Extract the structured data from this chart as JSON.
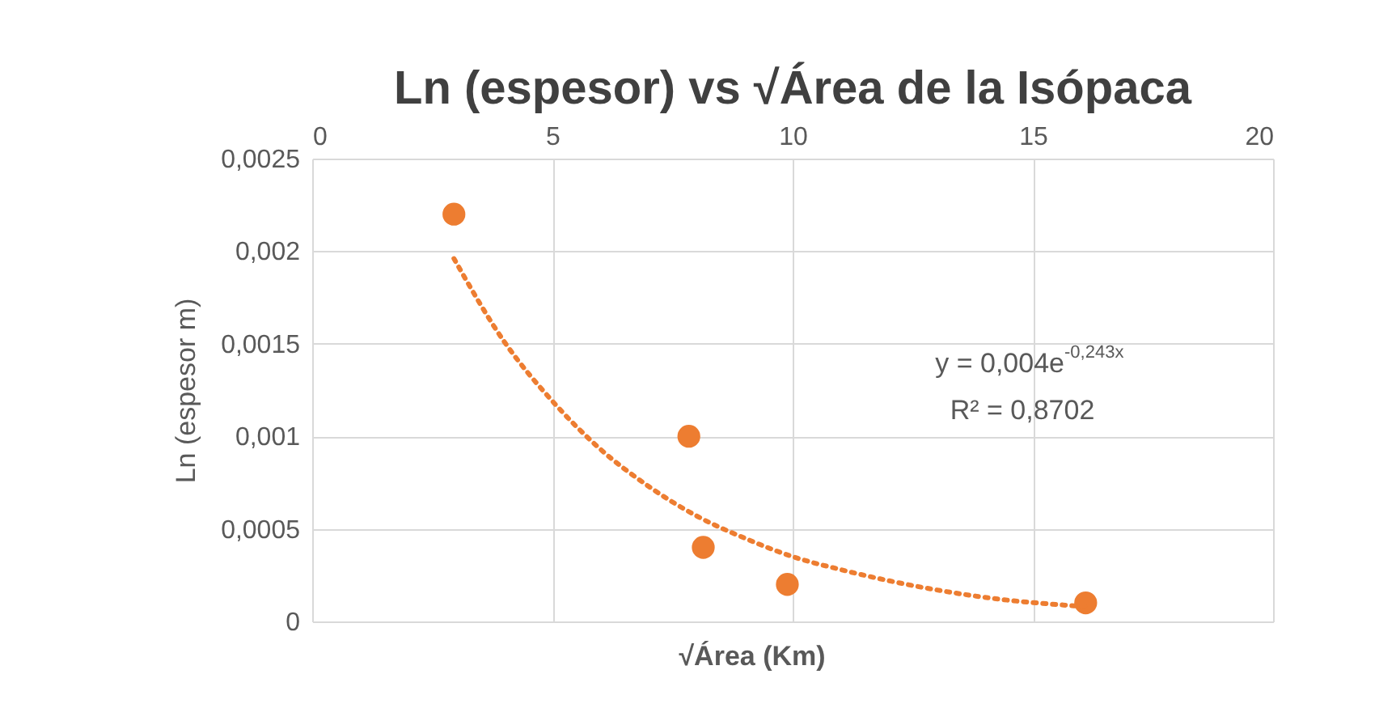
{
  "chart_data": {
    "type": "scatter",
    "title": "Ln (espesor) vs √Área de la Isópaca",
    "xlabel": "√Área (Km)",
    "ylabel": "Ln (espesor m)",
    "xlim": [
      0,
      20
    ],
    "xticks": [
      0,
      5,
      10,
      15,
      20
    ],
    "ylim": [
      0,
      0.0025
    ],
    "yticks": [
      {
        "value": 0,
        "label": "0"
      },
      {
        "value": 0.0005,
        "label": "0,0005"
      },
      {
        "value": 0.001,
        "label": "0,001"
      },
      {
        "value": 0.0015,
        "label": "0,0015"
      },
      {
        "value": 0.002,
        "label": "0,002"
      },
      {
        "value": 0.0025,
        "label": "0,0025"
      }
    ],
    "grid": true,
    "marker": "circle",
    "series": [
      {
        "color": "#ed7d31",
        "x": [
          2.95,
          7.84,
          8.14,
          9.89,
          16.1
        ],
        "values": [
          0.0022,
          0.001,
          0.0004,
          0.0002,
          0.0001
        ]
      },
      {
        "type": "line",
        "color": "#ed7d31",
        "line_style": "dotted",
        "marker": "none",
        "x": [
          2.95,
          4,
          5,
          6,
          7,
          8,
          9,
          10,
          11,
          12,
          13,
          14,
          16.1
        ],
        "values": [
          0.00196,
          0.00151,
          0.00119,
          0.00093,
          0.00073,
          0.00057,
          0.00045,
          0.00035,
          0.00028,
          0.00022,
          0.00017,
          0.00013,
          8e-05
        ]
      }
    ],
    "annotations": [
      "y = 0,004e$^{-0,243x}$",
      "R² = 0,8702"
    ]
  }
}
